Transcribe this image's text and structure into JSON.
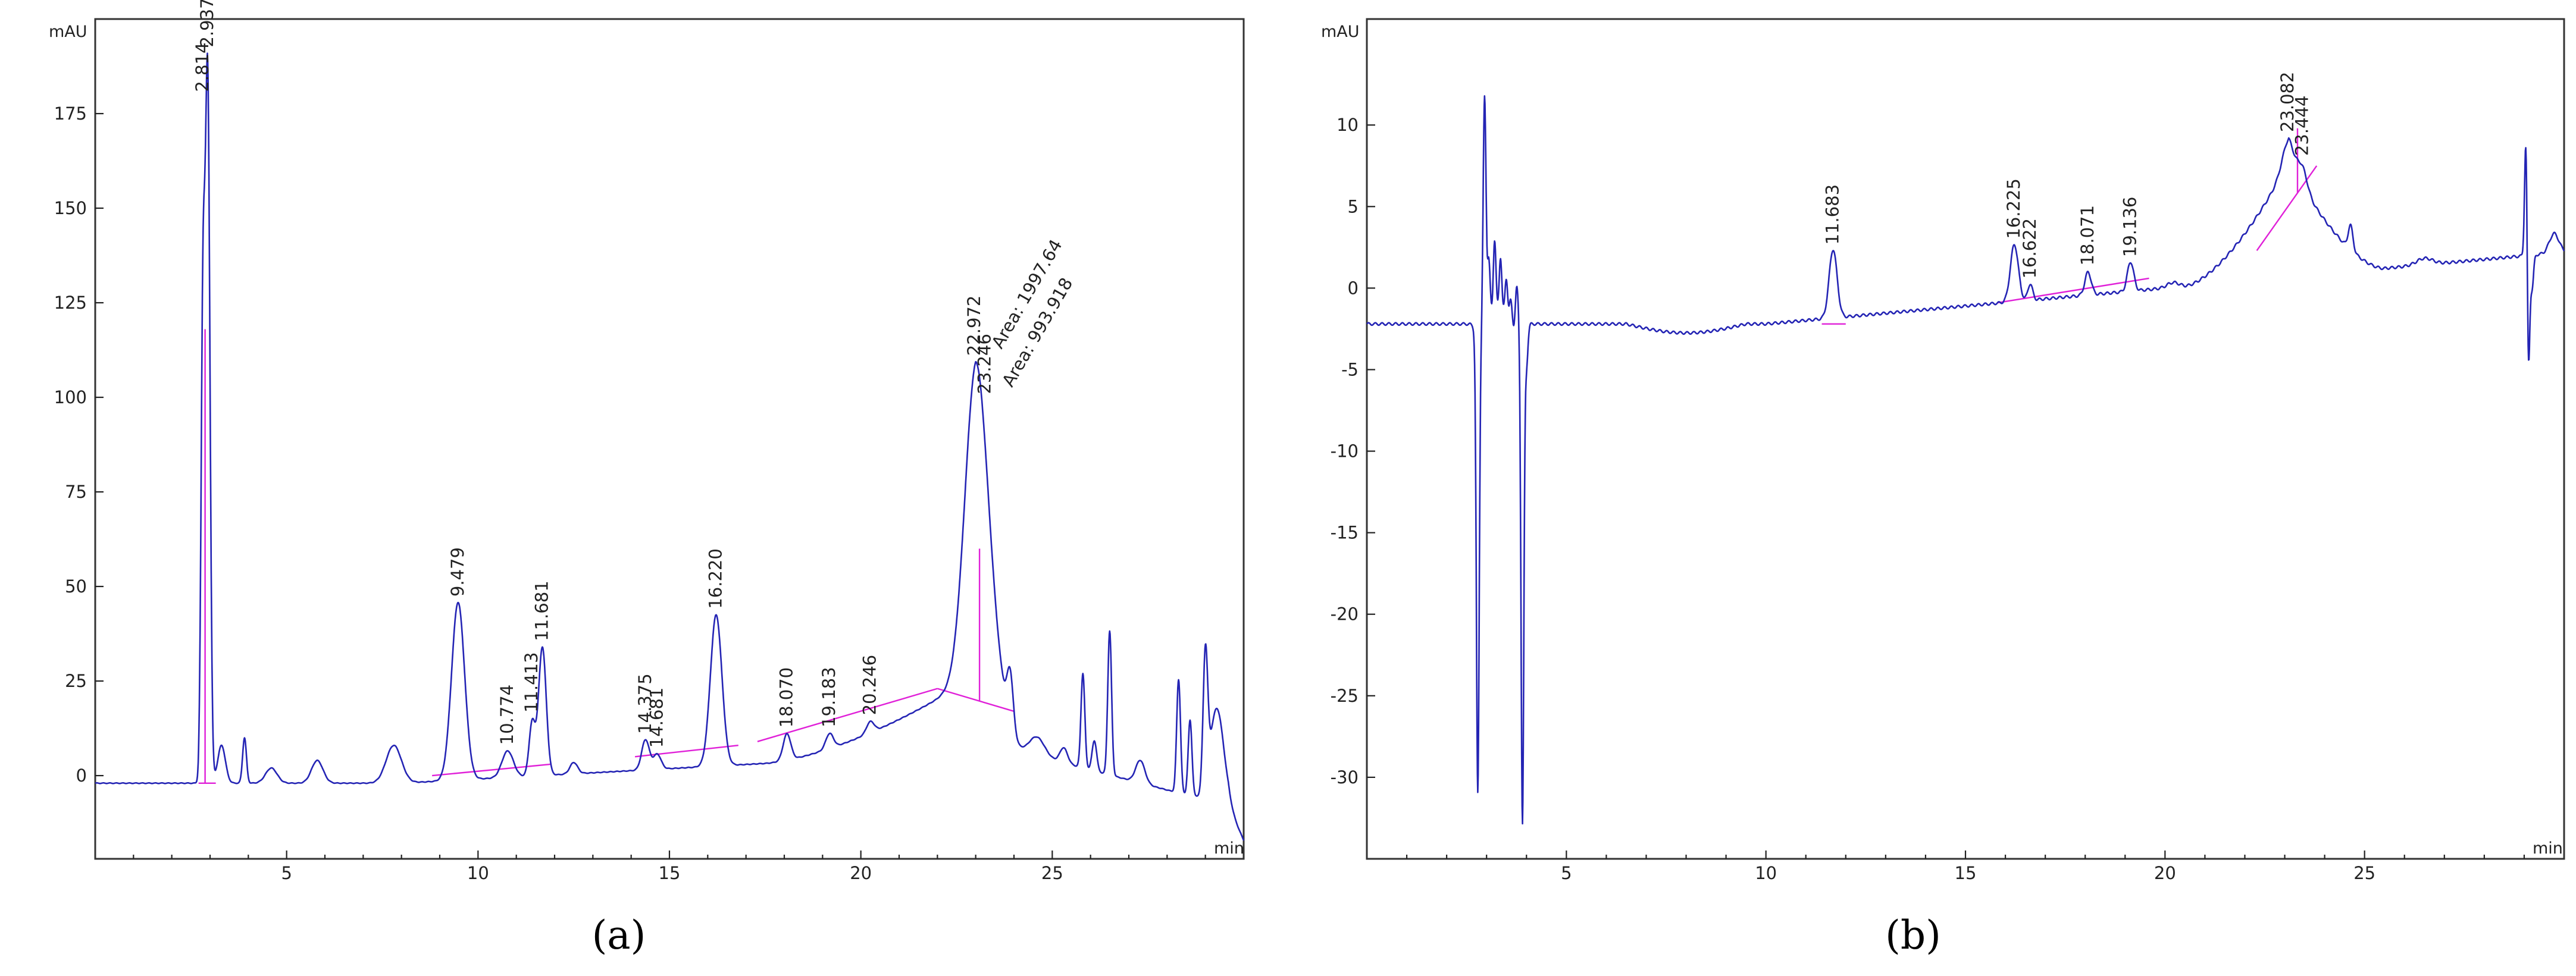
{
  "chart_data": [
    {
      "type": "line",
      "caption": "(a)",
      "y_unit_label": "mAU",
      "x_unit_label": "min",
      "xlim": [
        0,
        30
      ],
      "ylim": [
        -22,
        200
      ],
      "x_ticks": [
        5,
        10,
        15,
        20,
        25
      ],
      "y_ticks": [
        0,
        25,
        50,
        75,
        100,
        125,
        150,
        175
      ],
      "grid": false,
      "baseline_level": -2,
      "peaks": [
        {
          "x": 2.814,
          "y": 120,
          "w": 0.05,
          "label": "2.814"
        },
        {
          "x": 2.937,
          "y": 186,
          "w": 0.06,
          "label": "2.937"
        },
        {
          "x": 3.3,
          "y": 10,
          "w": 0.1
        },
        {
          "x": 3.9,
          "y": 12,
          "w": 0.05
        },
        {
          "x": 4.6,
          "y": 4,
          "w": 0.15
        },
        {
          "x": 5.8,
          "y": 6,
          "w": 0.15
        },
        {
          "x": 7.8,
          "y": 10,
          "w": 0.2
        },
        {
          "x": 9.479,
          "y": 47,
          "w": 0.17,
          "label": "9.479"
        },
        {
          "x": 10.774,
          "y": 7,
          "w": 0.15,
          "label": "10.774"
        },
        {
          "x": 11.413,
          "y": 14,
          "w": 0.08,
          "label": "11.413"
        },
        {
          "x": 11.681,
          "y": 34,
          "w": 0.1,
          "label": "11.681"
        },
        {
          "x": 12.5,
          "y": 3,
          "w": 0.1
        },
        {
          "x": 14.375,
          "y": 8,
          "w": 0.1,
          "label": "14.375"
        },
        {
          "x": 14.681,
          "y": 4,
          "w": 0.1,
          "label": "14.681"
        },
        {
          "x": 16.22,
          "y": 40,
          "w": 0.15,
          "label": "16.220"
        },
        {
          "x": 18.07,
          "y": 7,
          "w": 0.1,
          "label": "18.070"
        },
        {
          "x": 19.183,
          "y": 4,
          "w": 0.1,
          "label": "19.183"
        },
        {
          "x": 20.246,
          "y": 3,
          "w": 0.1,
          "label": "20.246"
        },
        {
          "x": 22.972,
          "y": 60,
          "w": 0.28,
          "label": "22.972",
          "area": "Area: 1997.64"
        },
        {
          "x": 23.246,
          "y": 30,
          "w": 0.35,
          "label": "23.246",
          "area": "Area: 993.918"
        },
        {
          "x": 23.9,
          "y": 14,
          "w": 0.08
        },
        {
          "x": 24.6,
          "y": 5,
          "w": 0.2
        },
        {
          "x": 25.3,
          "y": 4,
          "w": 0.1
        },
        {
          "x": 25.8,
          "y": 25,
          "w": 0.05
        },
        {
          "x": 26.1,
          "y": 8,
          "w": 0.06
        },
        {
          "x": 26.5,
          "y": 38,
          "w": 0.05
        },
        {
          "x": 27.3,
          "y": 6,
          "w": 0.12
        },
        {
          "x": 28.3,
          "y": 30,
          "w": 0.05
        },
        {
          "x": 28.6,
          "y": 20,
          "w": 0.05
        },
        {
          "x": 29.0,
          "y": 35,
          "w": 0.06
        },
        {
          "x": 29.3,
          "y": 25,
          "w": 0.18
        }
      ],
      "hump": {
        "start": 17.5,
        "peak": 23.0,
        "end": 24.2,
        "height": 20
      },
      "integration_segments": [
        [
          [
            2.7,
            -2
          ],
          [
            3.15,
            -2
          ]
        ],
        [
          [
            8.8,
            0
          ],
          [
            11.9,
            3
          ]
        ],
        [
          [
            14.1,
            5
          ],
          [
            16.8,
            8
          ]
        ],
        [
          [
            17.3,
            9
          ],
          [
            22.0,
            23
          ]
        ],
        [
          [
            22.0,
            23
          ],
          [
            24.0,
            17
          ]
        ]
      ],
      "drop_lines": [
        {
          "x": 2.87,
          "y_top": 118
        },
        {
          "x": 23.1,
          "y_top": 60
        }
      ]
    },
    {
      "type": "line",
      "caption": "(b)",
      "y_unit_label": "mAU",
      "x_unit_label": "min",
      "xlim": [
        0,
        30
      ],
      "ylim": [
        -35,
        16.5
      ],
      "x_ticks": [
        5,
        10,
        15,
        20,
        25
      ],
      "y_ticks": [
        -30,
        -25,
        -20,
        -15,
        -10,
        -5,
        0,
        5,
        10
      ],
      "grid": false,
      "baseline_level": -2.2,
      "peaks": [
        {
          "x": 2.8,
          "y": -0.8,
          "w": 0.08
        },
        {
          "x": 11.683,
          "y": 4.2,
          "w": 0.1,
          "label": "11.683"
        },
        {
          "x": 16.225,
          "y": 3.5,
          "w": 0.1,
          "label": "16.225"
        },
        {
          "x": 16.622,
          "y": 1.0,
          "w": 0.06,
          "label": "16.622"
        },
        {
          "x": 18.071,
          "y": 1.4,
          "w": 0.08,
          "label": "18.071"
        },
        {
          "x": 19.136,
          "y": 1.8,
          "w": 0.08,
          "label": "19.136"
        },
        {
          "x": 20.2,
          "y": 0.3,
          "w": 0.15
        },
        {
          "x": 23.082,
          "y": 1.5,
          "w": 0.15,
          "label": "23.082"
        },
        {
          "x": 23.444,
          "y": 1.2,
          "w": 0.12,
          "label": "23.444"
        },
        {
          "x": 24.65,
          "y": 1.5,
          "w": 0.06
        },
        {
          "x": 26.5,
          "y": 0.4,
          "w": 0.2
        },
        {
          "x": 29.75,
          "y": 1.2,
          "w": 0.12
        }
      ],
      "solvent_front": [
        {
          "x": 2.78,
          "y": -28
        },
        {
          "x": 2.95,
          "y": 14
        },
        {
          "x": 3.05,
          "y": 4
        },
        {
          "x": 3.2,
          "y": 5.5
        },
        {
          "x": 3.35,
          "y": 4.5
        },
        {
          "x": 3.5,
          "y": 3
        },
        {
          "x": 3.6,
          "y": 1
        },
        {
          "x": 3.75,
          "y": 2
        },
        {
          "x": 3.9,
          "y": -30.5
        },
        {
          "x": 4.0,
          "y": -2.5
        },
        {
          "x": 29.05,
          "y": 9
        },
        {
          "x": 29.1,
          "y": -8.8
        },
        {
          "x": 29.2,
          "y": -2
        }
      ],
      "hump": {
        "start": 20.5,
        "peak": 23.1,
        "end": 25.5,
        "height": 7
      },
      "integration_segments": [
        [
          [
            11.4,
            -2.2
          ],
          [
            12.0,
            -2.2
          ]
        ],
        [
          [
            15.8,
            -0.9
          ],
          [
            19.6,
            0.6
          ]
        ],
        [
          [
            22.3,
            2.3
          ],
          [
            23.8,
            7.5
          ]
        ]
      ],
      "drop_lines": [
        {
          "x": 23.32,
          "y_top": 9.8
        }
      ]
    }
  ]
}
